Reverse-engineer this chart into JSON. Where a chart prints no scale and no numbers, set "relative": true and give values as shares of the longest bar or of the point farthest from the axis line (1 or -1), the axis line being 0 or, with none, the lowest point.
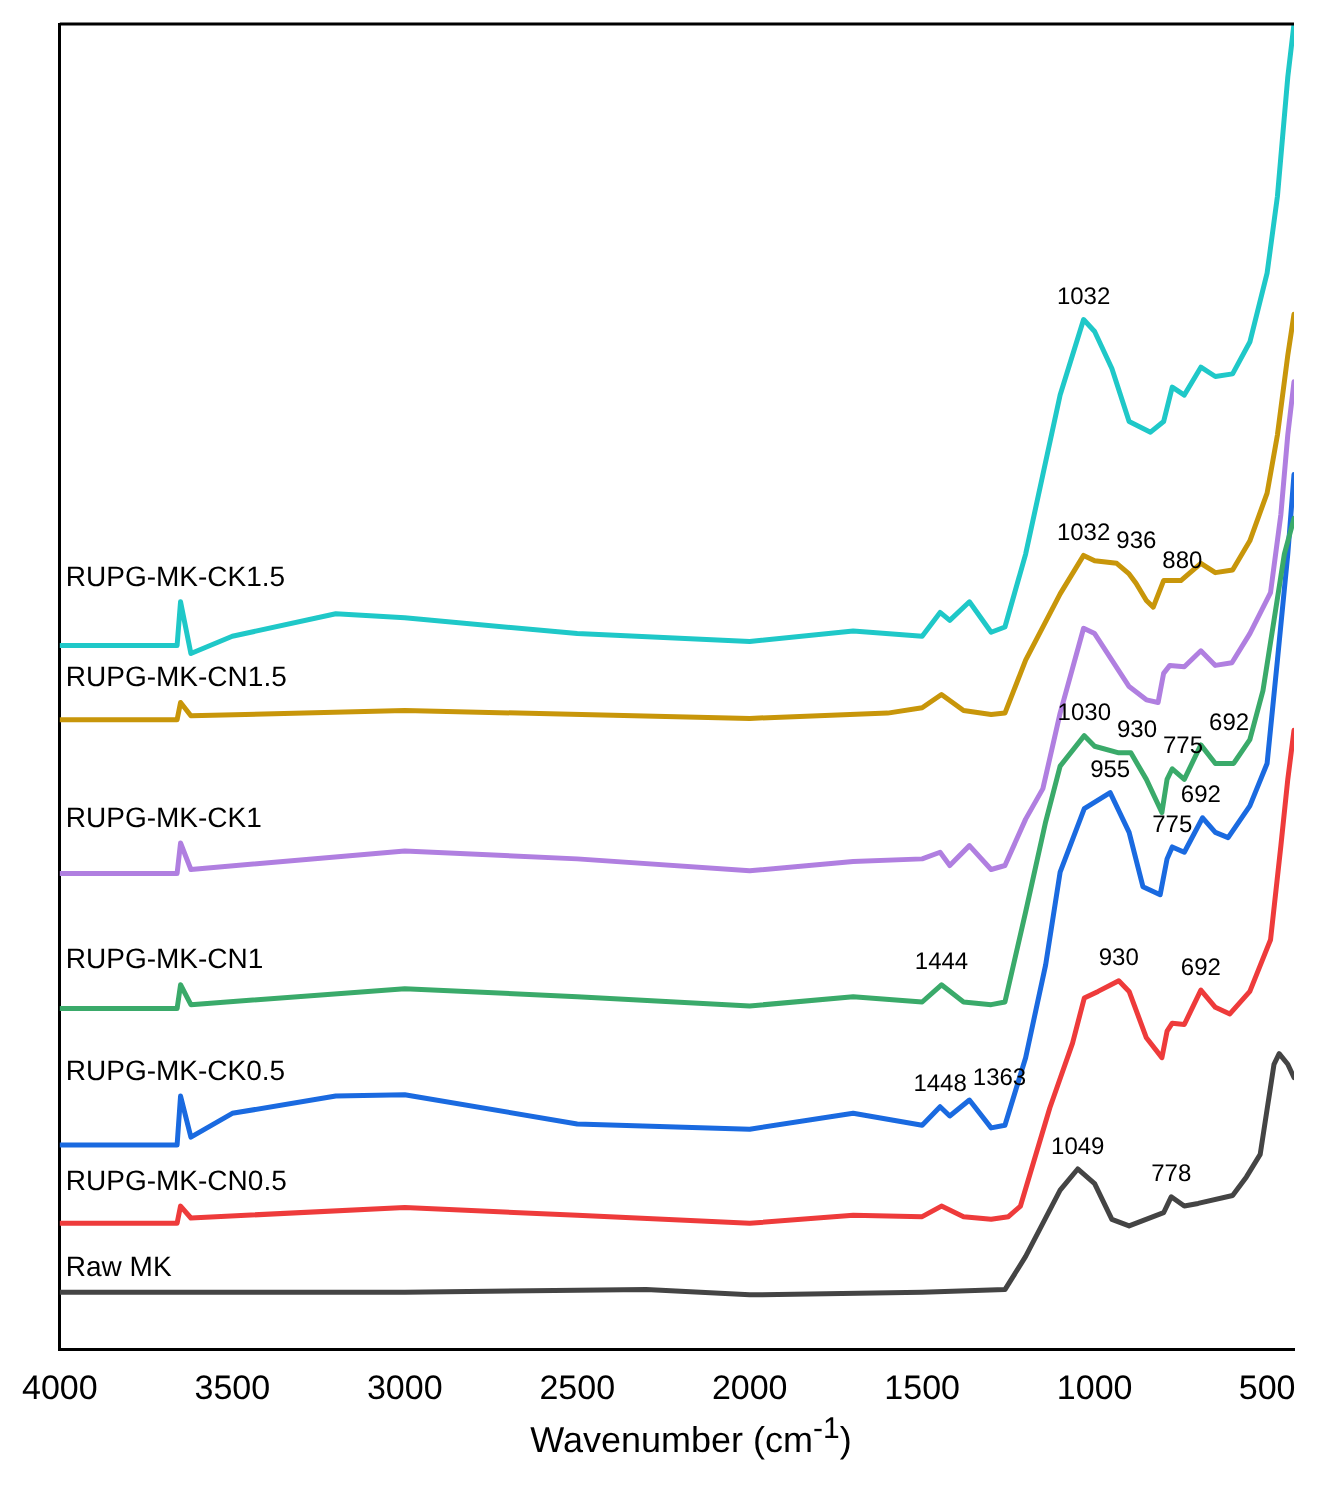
{
  "chart_data": {
    "type": "line",
    "relative": true,
    "xlabel": "Wavenumber (cm$^{-1}$)",
    "xlim": [
      4000,
      422
    ],
    "xticks": [
      4000,
      3500,
      3000,
      2500,
      2000,
      1500,
      1000,
      500
    ],
    "grid": false,
    "legend": false,
    "marker": "none",
    "line_style": "solid",
    "tick_labels": "x",
    "series": [
      {
        "name": "RUPG-MK-CK1.5",
        "color": "#1fc8c8",
        "x": [
          4000,
          3660,
          3650,
          3620,
          3500,
          3200,
          3000,
          2500,
          2000,
          1700,
          1500,
          1448,
          1420,
          1363,
          1300,
          1260,
          1200,
          1150,
          1100,
          1032,
          1000,
          950,
          900,
          838,
          800,
          775,
          740,
          692,
          650,
          600,
          550,
          500,
          470,
          440,
          422
        ],
        "values": [
          0.531,
          0.531,
          0.564,
          0.525,
          0.538,
          0.555,
          0.552,
          0.54,
          0.534,
          0.542,
          0.538,
          0.556,
          0.55,
          0.564,
          0.541,
          0.545,
          0.6,
          0.66,
          0.72,
          0.777,
          0.768,
          0.74,
          0.7,
          0.692,
          0.7,
          0.726,
          0.72,
          0.741,
          0.734,
          0.736,
          0.76,
          0.812,
          0.87,
          0.96,
          1.0
        ]
      },
      {
        "name": "RUPG-MK-CN1.5",
        "color": "#c8960a",
        "x": [
          4000,
          3660,
          3650,
          3620,
          3000,
          2000,
          1600,
          1500,
          1444,
          1380,
          1300,
          1260,
          1200,
          1100,
          1032,
          1000,
          936,
          900,
          880,
          850,
          830,
          800,
          750,
          692,
          650,
          600,
          550,
          500,
          470,
          440,
          422
        ],
        "values": [
          0.475,
          0.475,
          0.488,
          0.478,
          0.482,
          0.476,
          0.48,
          0.484,
          0.494,
          0.482,
          0.479,
          0.48,
          0.52,
          0.57,
          0.599,
          0.595,
          0.593,
          0.585,
          0.578,
          0.565,
          0.56,
          0.58,
          0.58,
          0.593,
          0.586,
          0.588,
          0.61,
          0.646,
          0.69,
          0.75,
          0.781
        ]
      },
      {
        "name": "RUPG-MK-CK1",
        "color": "#b07fe0",
        "x": [
          4000,
          3660,
          3650,
          3620,
          3000,
          2500,
          2000,
          1700,
          1500,
          1448,
          1420,
          1363,
          1300,
          1260,
          1200,
          1150,
          1100,
          1032,
          1000,
          950,
          900,
          850,
          816,
          800,
          782,
          740,
          692,
          650,
          602,
          550,
          490,
          460,
          440,
          422
        ],
        "values": [
          0.359,
          0.359,
          0.382,
          0.362,
          0.376,
          0.37,
          0.361,
          0.368,
          0.37,
          0.375,
          0.365,
          0.38,
          0.362,
          0.365,
          0.4,
          0.423,
          0.48,
          0.544,
          0.54,
          0.52,
          0.5,
          0.49,
          0.488,
          0.51,
          0.516,
          0.515,
          0.527,
          0.516,
          0.518,
          0.54,
          0.571,
          0.63,
          0.69,
          0.73
        ]
      },
      {
        "name": "RUPG-MK-CN1",
        "color": "#3aaa6a",
        "x": [
          4000,
          3660,
          3650,
          3620,
          3000,
          2500,
          2000,
          1700,
          1500,
          1444,
          1380,
          1300,
          1260,
          1200,
          1142,
          1100,
          1030,
          1000,
          930,
          895,
          850,
          805,
          790,
          775,
          740,
          692,
          650,
          597,
          550,
          512,
          480,
          450,
          422
        ],
        "values": [
          0.257,
          0.257,
          0.275,
          0.26,
          0.272,
          0.266,
          0.259,
          0.266,
          0.262,
          0.275,
          0.262,
          0.26,
          0.262,
          0.33,
          0.398,
          0.44,
          0.463,
          0.455,
          0.45,
          0.45,
          0.43,
          0.405,
          0.43,
          0.438,
          0.43,
          0.456,
          0.442,
          0.442,
          0.46,
          0.497,
          0.55,
          0.6,
          0.627
        ]
      },
      {
        "name": "RUPG-MK-CK0.5",
        "color": "#1a6ae0",
        "x": [
          4000,
          3660,
          3650,
          3620,
          3500,
          3200,
          3000,
          2500,
          2000,
          1700,
          1500,
          1448,
          1420,
          1363,
          1300,
          1260,
          1200,
          1142,
          1100,
          1030,
          955,
          900,
          860,
          810,
          790,
          775,
          740,
          687,
          650,
          613,
          550,
          500,
          470,
          440,
          422
        ],
        "values": [
          0.154,
          0.154,
          0.191,
          0.16,
          0.178,
          0.191,
          0.192,
          0.17,
          0.166,
          0.178,
          0.169,
          0.183,
          0.176,
          0.188,
          0.167,
          0.169,
          0.22,
          0.29,
          0.36,
          0.408,
          0.42,
          0.39,
          0.349,
          0.343,
          0.37,
          0.379,
          0.375,
          0.401,
          0.39,
          0.386,
          0.41,
          0.442,
          0.52,
          0.6,
          0.66
        ]
      },
      {
        "name": "RUPG-MK-CN0.5",
        "color": "#ee3b3b",
        "x": [
          4000,
          3660,
          3650,
          3620,
          3000,
          2500,
          2000,
          1700,
          1500,
          1444,
          1380,
          1300,
          1250,
          1215,
          1130,
          1064,
          1030,
          990,
          930,
          900,
          850,
          805,
          790,
          775,
          740,
          692,
          650,
          608,
          550,
          490,
          460,
          440,
          422
        ],
        "values": [
          0.095,
          0.095,
          0.108,
          0.099,
          0.107,
          0.101,
          0.095,
          0.101,
          0.1,
          0.108,
          0.1,
          0.098,
          0.1,
          0.108,
          0.182,
          0.231,
          0.265,
          0.27,
          0.278,
          0.27,
          0.235,
          0.22,
          0.24,
          0.246,
          0.245,
          0.271,
          0.258,
          0.253,
          0.27,
          0.309,
          0.38,
          0.43,
          0.467
        ]
      },
      {
        "name": "Raw MK",
        "color": "#444444",
        "x": [
          4000,
          3000,
          2300,
          2000,
          1500,
          1260,
          1200,
          1100,
          1049,
          1000,
          950,
          900,
          800,
          778,
          740,
          700,
          600,
          560,
          520,
          480,
          465,
          440,
          422
        ],
        "values": [
          0.043,
          0.043,
          0.045,
          0.041,
          0.043,
          0.045,
          0.07,
          0.12,
          0.136,
          0.125,
          0.098,
          0.093,
          0.103,
          0.115,
          0.108,
          0.11,
          0.116,
          0.13,
          0.147,
          0.215,
          0.223,
          0.215,
          0.205
        ]
      }
    ],
    "annotations": [
      {
        "text": "1032",
        "x": 1032,
        "y": 0.777
      },
      {
        "text": "1032",
        "x": 1032,
        "y": 0.599
      },
      {
        "text": "936",
        "x": 936,
        "y": 0.593
      },
      {
        "text": "880",
        "x": 880,
        "y": 0.578
      },
      {
        "text": "1030",
        "x": 1030,
        "y": 0.463
      },
      {
        "text": "930",
        "x": 930,
        "y": 0.45
      },
      {
        "text": "775",
        "x": 775,
        "y": 0.438
      },
      {
        "text": "692",
        "x": 692,
        "y": 0.456
      },
      {
        "text": "955",
        "x": 955,
        "y": 0.42
      },
      {
        "text": "775",
        "x": 775,
        "y": 0.379
      },
      {
        "text": "692",
        "x": 692,
        "y": 0.401
      },
      {
        "text": "1444",
        "x": 1444,
        "y": 0.275
      },
      {
        "text": "1448",
        "x": 1448,
        "y": 0.183
      },
      {
        "text": "1363",
        "x": 1363,
        "y": 0.188
      },
      {
        "text": "930",
        "x": 930,
        "y": 0.278
      },
      {
        "text": "692",
        "x": 692,
        "y": 0.271
      },
      {
        "text": "1049",
        "x": 1049,
        "y": 0.136
      },
      {
        "text": "778",
        "x": 778,
        "y": 0.115
      }
    ]
  }
}
